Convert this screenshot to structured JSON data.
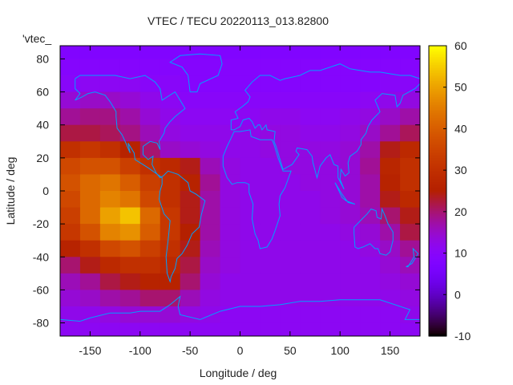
{
  "chart_data": {
    "type": "heatmap",
    "title": "VTEC / TECU 20220113_013.82800",
    "xlabel": "Longitude / deg",
    "ylabel": "Latitude / deg",
    "key_label": "'vtec_",
    "xlim": [
      -180,
      180
    ],
    "ylim": [
      -88,
      88
    ],
    "xticks": [
      -150,
      -100,
      -50,
      0,
      50,
      100,
      150
    ],
    "yticks": [
      80,
      60,
      40,
      20,
      0,
      -20,
      -40,
      -60,
      -80
    ],
    "colorbar": {
      "range": [
        -10,
        60
      ],
      "ticks": [
        60,
        50,
        40,
        30,
        20,
        10,
        0,
        -10
      ],
      "palette": "black-purple-red-orange-yellow"
    },
    "grid_lon_centers": [
      -170,
      -150,
      -130,
      -110,
      -90,
      -70,
      -50,
      -30,
      -10,
      10,
      30,
      50,
      70,
      90,
      110,
      130,
      150,
      170
    ],
    "grid_lat_centers": [
      85,
      75,
      65,
      55,
      45,
      35,
      25,
      15,
      5,
      -5,
      -15,
      -25,
      -35,
      -45,
      -55,
      -65,
      -75,
      -85
    ],
    "values": [
      [
        8,
        8,
        8,
        8,
        8,
        8,
        8,
        8,
        8,
        8,
        8,
        8,
        8,
        8,
        8,
        8,
        8,
        8
      ],
      [
        9,
        9,
        9,
        9,
        9,
        9,
        9,
        9,
        9,
        9,
        9,
        9,
        9,
        9,
        9,
        9,
        9,
        9
      ],
      [
        10,
        11,
        11,
        11,
        10,
        10,
        9,
        9,
        9,
        9,
        9,
        9,
        9,
        9,
        9,
        9,
        10,
        10
      ],
      [
        14,
        15,
        15,
        14,
        12,
        11,
        10,
        10,
        10,
        10,
        10,
        10,
        10,
        10,
        10,
        11,
        12,
        13
      ],
      [
        18,
        19,
        19,
        17,
        14,
        12,
        11,
        11,
        11,
        11,
        12,
        12,
        11,
        11,
        12,
        13,
        15,
        17
      ],
      [
        22,
        22,
        21,
        19,
        16,
        13,
        12,
        12,
        12,
        12,
        13,
        13,
        12,
        12,
        13,
        15,
        18,
        21
      ],
      [
        30,
        32,
        30,
        26,
        20,
        15,
        14,
        13,
        12,
        12,
        13,
        13,
        13,
        13,
        14,
        17,
        24,
        28
      ],
      [
        36,
        38,
        38,
        34,
        30,
        28,
        24,
        16,
        13,
        12,
        12,
        13,
        13,
        13,
        14,
        18,
        27,
        30
      ],
      [
        38,
        42,
        44,
        40,
        34,
        30,
        26,
        18,
        13,
        12,
        12,
        12,
        13,
        13,
        14,
        17,
        26,
        30
      ],
      [
        36,
        42,
        46,
        44,
        36,
        30,
        24,
        17,
        13,
        12,
        12,
        12,
        12,
        13,
        14,
        17,
        24,
        28
      ],
      [
        34,
        42,
        50,
        54,
        42,
        32,
        24,
        17,
        13,
        12,
        12,
        12,
        12,
        13,
        14,
        16,
        20,
        24
      ],
      [
        32,
        38,
        46,
        48,
        40,
        32,
        25,
        17,
        13,
        12,
        12,
        12,
        12,
        12,
        13,
        14,
        17,
        22
      ],
      [
        26,
        30,
        36,
        38,
        34,
        30,
        24,
        16,
        13,
        12,
        12,
        12,
        12,
        12,
        12,
        13,
        15,
        18
      ],
      [
        20,
        24,
        28,
        30,
        30,
        28,
        22,
        15,
        13,
        12,
        12,
        12,
        12,
        12,
        12,
        12,
        14,
        16
      ],
      [
        16,
        18,
        22,
        24,
        26,
        26,
        20,
        14,
        12,
        12,
        12,
        12,
        12,
        12,
        12,
        12,
        13,
        14
      ],
      [
        14,
        15,
        17,
        18,
        20,
        20,
        16,
        13,
        12,
        12,
        12,
        12,
        12,
        12,
        12,
        12,
        12,
        13
      ],
      [
        12,
        12,
        13,
        14,
        14,
        14,
        13,
        12,
        11,
        11,
        11,
        11,
        11,
        11,
        11,
        11,
        11,
        12
      ],
      [
        11,
        11,
        11,
        11,
        11,
        11,
        11,
        11,
        11,
        11,
        11,
        11,
        11,
        11,
        11,
        11,
        11,
        11
      ]
    ],
    "coastline_color": "#00a0ff"
  }
}
